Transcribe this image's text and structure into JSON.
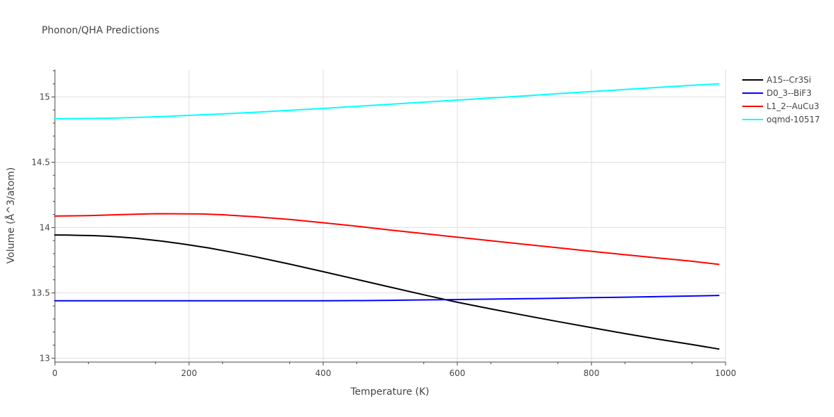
{
  "chart_data": {
    "type": "line",
    "title": "Phonon/QHA Predictions",
    "xlabel": "Temperature (K)",
    "ylabel": "Volume (Å^3/atom)",
    "xlim": [
      0,
      1000
    ],
    "ylim": [
      12.97,
      15.21
    ],
    "x_ticks": [
      0,
      200,
      400,
      600,
      800,
      1000
    ],
    "x_tick_labels": [
      "0",
      "200",
      "400",
      "600",
      "800",
      "1000"
    ],
    "y_ticks": [
      13,
      13.5,
      14,
      14.5,
      15
    ],
    "y_tick_labels": [
      "13",
      "13.5",
      "14",
      "14.5",
      "15"
    ],
    "grid": true,
    "legend_position": "top-right",
    "series": [
      {
        "name": "A15--Cr3Si",
        "color": "#000000",
        "x": [
          0,
          20,
          40,
          60,
          80,
          100,
          120,
          140,
          160,
          180,
          200,
          230,
          260,
          300,
          350,
          400,
          450,
          500,
          550,
          600,
          650,
          700,
          750,
          800,
          850,
          900,
          950,
          990
        ],
        "y": [
          13.943,
          13.942,
          13.94,
          13.938,
          13.933,
          13.926,
          13.918,
          13.907,
          13.896,
          13.882,
          13.867,
          13.843,
          13.815,
          13.775,
          13.72,
          13.662,
          13.603,
          13.544,
          13.485,
          13.428,
          13.377,
          13.328,
          13.28,
          13.234,
          13.188,
          13.145,
          13.104,
          13.07
        ]
      },
      {
        "name": "D0_3--BiF3",
        "color": "#0000ff",
        "x": [
          0,
          100,
          200,
          300,
          400,
          460,
          500,
          550,
          600,
          650,
          700,
          750,
          800,
          850,
          900,
          950,
          990
        ],
        "y": [
          13.44,
          13.44,
          13.44,
          13.44,
          13.44,
          13.441,
          13.443,
          13.446,
          13.449,
          13.452,
          13.455,
          13.459,
          13.463,
          13.467,
          13.471,
          13.476,
          13.48
        ]
      },
      {
        "name": "L1_2--AuCu3",
        "color": "#ff0000",
        "x": [
          0,
          50,
          100,
          150,
          200,
          220,
          250,
          300,
          350,
          400,
          450,
          500,
          550,
          600,
          650,
          700,
          750,
          800,
          850,
          900,
          950,
          990
        ],
        "y": [
          14.088,
          14.091,
          14.099,
          14.106,
          14.105,
          14.104,
          14.098,
          14.082,
          14.062,
          14.037,
          14.01,
          13.981,
          13.954,
          13.926,
          13.899,
          13.872,
          13.845,
          13.818,
          13.792,
          13.767,
          13.742,
          13.718
        ]
      },
      {
        "name": "oqmd-10517",
        "color": "#00ffff",
        "x": [
          0,
          40,
          80,
          120,
          160,
          200,
          250,
          300,
          350,
          400,
          450,
          500,
          550,
          600,
          650,
          700,
          750,
          800,
          850,
          900,
          950,
          990
        ],
        "y": [
          14.834,
          14.835,
          14.837,
          14.843,
          14.85,
          14.859,
          14.87,
          14.883,
          14.897,
          14.912,
          14.928,
          14.944,
          14.96,
          14.976,
          14.992,
          15.008,
          15.025,
          15.041,
          15.057,
          15.073,
          15.089,
          15.1
        ]
      }
    ]
  }
}
